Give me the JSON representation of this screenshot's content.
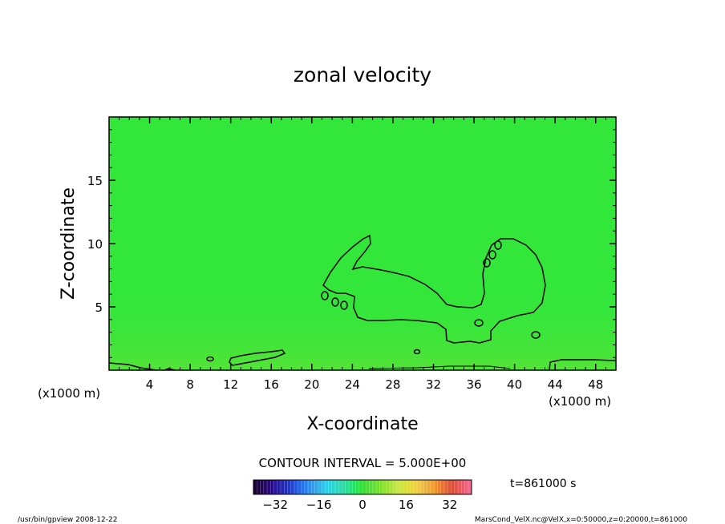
{
  "chart_data": {
    "type": "heatmap",
    "title": "zonal velocity",
    "xlabel": "X-coordinate",
    "ylabel": "Z-coordinate",
    "x_unit_left": "(x1000 m)",
    "x_unit_right": "(x1000 m)",
    "xlim": [
      0,
      50
    ],
    "ylim": [
      0,
      20
    ],
    "x_ticks": [
      4,
      8,
      12,
      16,
      20,
      24,
      28,
      32,
      36,
      40,
      44,
      48
    ],
    "y_ticks": [
      5,
      10,
      15
    ],
    "contour_interval_text": "CONTOUR INTERVAL = 5.000E+00",
    "time_text": "t=861000 s",
    "colorbar": {
      "min": -40,
      "max": 40,
      "ticks": [
        -32,
        -16,
        0,
        16,
        32
      ],
      "colors": [
        "#1a0033",
        "#2a0a8c",
        "#1f3fd6",
        "#2a8cf0",
        "#2ed0e8",
        "#22e0a0",
        "#2ee030",
        "#7ee030",
        "#c8e83a",
        "#f0d040",
        "#f09a30",
        "#e04a30",
        "#f06a90"
      ]
    },
    "field_color": "#33e63a",
    "contour_color": "#000000"
  },
  "footer": {
    "left": "/usr/bin/gpview 2008-12-22",
    "right": "MarsCond_VelX.nc@VelX,x=0:50000,z=0:20000,t=861000"
  }
}
